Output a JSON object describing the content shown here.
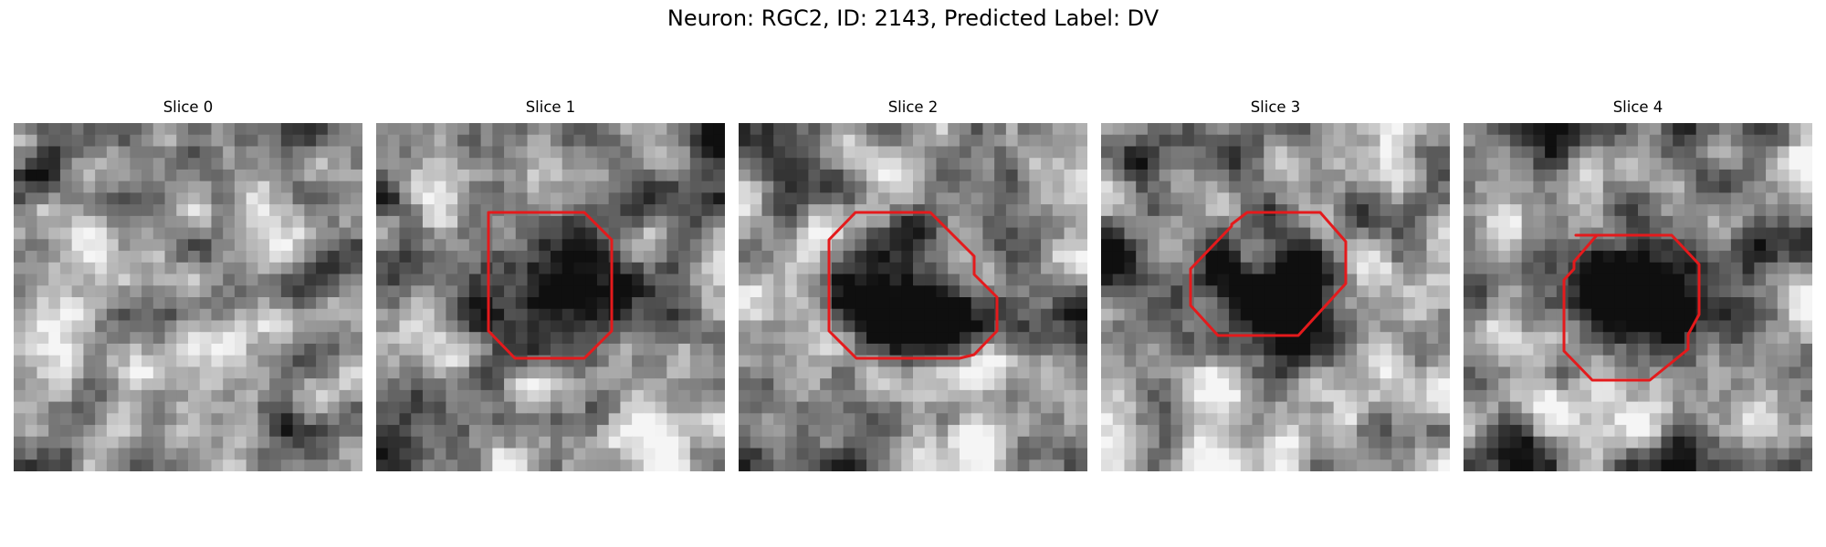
{
  "figure": {
    "title": "Neuron: RGC2, ID: 2143, Predicted Label: DV"
  },
  "panels": [
    {
      "title": "Slice 0",
      "roi_shown": false
    },
    {
      "title": "Slice 1",
      "roi_shown": true
    },
    {
      "title": "Slice 2",
      "roi_shown": true
    },
    {
      "title": "Slice 3",
      "roi_shown": true
    },
    {
      "title": "Slice 4",
      "roi_shown": true
    }
  ],
  "colors": {
    "roi_outline": "#e41a1c",
    "background": "#ffffff"
  },
  "image_style": "grayscale-pixelated-microscopy"
}
